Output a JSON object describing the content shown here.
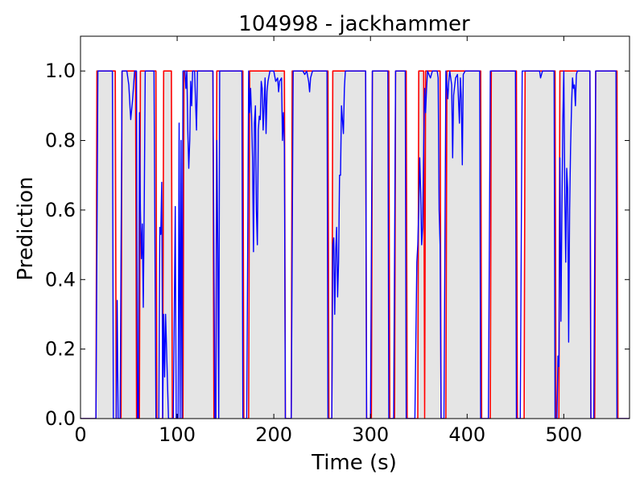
{
  "chart_data": {
    "type": "line",
    "title": "104998 - jackhammer",
    "xlabel": "Time (s)",
    "ylabel": "Prediction",
    "xlim": [
      0,
      568
    ],
    "ylim": [
      0.0,
      1.1
    ],
    "x_ticks": [
      0,
      100,
      200,
      300,
      400,
      500
    ],
    "x_tick_labels": [
      "0",
      "100",
      "200",
      "300",
      "400",
      "500"
    ],
    "y_ticks": [
      0.0,
      0.2,
      0.4,
      0.6,
      0.8,
      1.0
    ],
    "y_tick_labels": [
      "0.0",
      "0.2",
      "0.4",
      "0.6",
      "0.8",
      "1.0"
    ],
    "grid": false,
    "colors": {
      "ground_truth": "#ff0000",
      "prediction": "#0000ff",
      "shading": "#e5e5e5"
    },
    "ground_truth_segments": [
      [
        17,
        36
      ],
      [
        43,
        57
      ],
      [
        62,
        78
      ],
      [
        86,
        94
      ],
      [
        107,
        137
      ],
      [
        141,
        168
      ],
      [
        175,
        211
      ],
      [
        219,
        256
      ],
      [
        261,
        295
      ],
      [
        302,
        319
      ],
      [
        326,
        337
      ],
      [
        350,
        355
      ],
      [
        357,
        372
      ],
      [
        379,
        414
      ],
      [
        425,
        451
      ],
      [
        460,
        491
      ],
      [
        496,
        527
      ],
      [
        533,
        555
      ]
    ],
    "series": [
      {
        "values": [
          [
            0,
            0
          ],
          [
            16,
            0
          ],
          [
            18,
            1
          ],
          [
            33,
            1
          ],
          [
            34,
            0
          ],
          [
            37,
            0
          ],
          [
            38,
            0.34
          ],
          [
            39,
            0
          ],
          [
            41,
            0
          ],
          [
            43,
            1
          ],
          [
            48,
            1
          ],
          [
            50,
            0.96
          ],
          [
            52,
            0.86
          ],
          [
            54,
            0.92
          ],
          [
            56,
            1
          ],
          [
            58,
            1
          ],
          [
            59,
            0
          ],
          [
            60,
            0
          ],
          [
            61,
            0.88
          ],
          [
            62,
            0.6
          ],
          [
            63,
            0.46
          ],
          [
            64,
            0.56
          ],
          [
            65,
            0.32
          ],
          [
            66,
            0.62
          ],
          [
            67,
            1
          ],
          [
            76,
            1
          ],
          [
            78,
            0
          ],
          [
            81,
            0
          ],
          [
            82,
            0.55
          ],
          [
            83,
            0.53
          ],
          [
            84,
            0.68
          ],
          [
            85,
            0
          ],
          [
            86,
            0.3
          ],
          [
            87,
            0.12
          ],
          [
            88,
            0.3
          ],
          [
            89,
            0.2
          ],
          [
            90,
            0.1
          ],
          [
            91,
            0
          ],
          [
            96,
            0
          ],
          [
            98,
            0.61
          ],
          [
            99,
            0
          ],
          [
            101,
            0
          ],
          [
            102,
            0.85
          ],
          [
            103,
            0
          ],
          [
            104,
            0.8
          ],
          [
            105,
            0
          ],
          [
            106,
            1
          ],
          [
            108,
            1
          ],
          [
            109,
            0.95
          ],
          [
            110,
            1
          ],
          [
            111,
            0.83
          ],
          [
            112,
            0.72
          ],
          [
            113,
            0.8
          ],
          [
            114,
            0.97
          ],
          [
            115,
            0.9
          ],
          [
            116,
            1
          ],
          [
            118,
            1
          ],
          [
            120,
            0.83
          ],
          [
            121,
            1
          ],
          [
            137,
            1
          ],
          [
            139,
            0
          ],
          [
            140,
            0
          ],
          [
            141,
            0.8
          ],
          [
            142,
            0.5
          ],
          [
            143,
            0
          ],
          [
            144,
            1
          ],
          [
            167,
            1
          ],
          [
            168,
            0
          ],
          [
            172,
            0
          ],
          [
            174,
            1
          ],
          [
            175,
            0.88
          ],
          [
            176,
            0.95
          ],
          [
            177,
            0.87
          ],
          [
            178,
            0.75
          ],
          [
            179,
            0.48
          ],
          [
            180,
            0.85
          ],
          [
            181,
            0.9
          ],
          [
            182,
            0.6
          ],
          [
            183,
            0.5
          ],
          [
            184,
            0.83
          ],
          [
            185,
            0.87
          ],
          [
            186,
            0.86
          ],
          [
            187,
            0.97
          ],
          [
            188,
            0.95
          ],
          [
            189,
            0.83
          ],
          [
            190,
            0.9
          ],
          [
            191,
            0.98
          ],
          [
            192,
            0.82
          ],
          [
            193,
            0.94
          ],
          [
            194,
            0.97
          ],
          [
            196,
            1
          ],
          [
            200,
            1
          ],
          [
            202,
            0.97
          ],
          [
            204,
            0.98
          ],
          [
            205,
            0.94
          ],
          [
            206,
            0.97
          ],
          [
            208,
            0.98
          ],
          [
            209,
            0.8
          ],
          [
            210,
            0.88
          ],
          [
            211,
            0.78
          ],
          [
            212,
            0
          ],
          [
            218,
            0
          ],
          [
            220,
            1
          ],
          [
            230,
            1
          ],
          [
            232,
            0.99
          ],
          [
            234,
            1
          ],
          [
            236,
            0.97
          ],
          [
            237,
            0.94
          ],
          [
            238,
            0.98
          ],
          [
            240,
            1
          ],
          [
            255,
            1
          ],
          [
            256,
            0
          ],
          [
            260,
            0
          ],
          [
            261,
            0.5
          ],
          [
            262,
            0.52
          ],
          [
            263,
            0.3
          ],
          [
            264,
            0.48
          ],
          [
            265,
            0.55
          ],
          [
            266,
            0.35
          ],
          [
            267,
            0.45
          ],
          [
            268,
            0.7
          ],
          [
            269,
            0.7
          ],
          [
            270,
            0.9
          ],
          [
            272,
            0.82
          ],
          [
            273,
            0.95
          ],
          [
            274,
            1
          ],
          [
            295,
            1
          ],
          [
            296,
            0
          ],
          [
            300,
            0
          ],
          [
            302,
            1
          ],
          [
            318,
            1
          ],
          [
            319,
            0
          ],
          [
            324,
            0
          ],
          [
            326,
            1
          ],
          [
            336,
            1
          ],
          [
            337,
            0
          ],
          [
            346,
            0
          ],
          [
            348,
            0.45
          ],
          [
            349,
            0.5
          ],
          [
            350,
            0.6
          ],
          [
            351,
            0.75
          ],
          [
            352,
            0.65
          ],
          [
            353,
            0.5
          ],
          [
            354,
            0.55
          ],
          [
            355,
            0.78
          ],
          [
            356,
            0.95
          ],
          [
            357,
            0.88
          ],
          [
            358,
            0.95
          ],
          [
            359,
            1
          ],
          [
            362,
            0.98
          ],
          [
            364,
            1
          ],
          [
            369,
            1
          ],
          [
            370,
            0.98
          ],
          [
            371,
            0.6
          ],
          [
            372,
            0.5
          ],
          [
            373,
            0
          ],
          [
            376,
            0
          ],
          [
            378,
            1
          ],
          [
            380,
            0.92
          ],
          [
            381,
            0.97
          ],
          [
            382,
            1
          ],
          [
            384,
            0.96
          ],
          [
            385,
            0.75
          ],
          [
            386,
            0.93
          ],
          [
            388,
            0.98
          ],
          [
            390,
            0.99
          ],
          [
            392,
            0.85
          ],
          [
            393,
            0.98
          ],
          [
            394,
            0.92
          ],
          [
            395,
            0.73
          ],
          [
            396,
            0.99
          ],
          [
            398,
            1
          ],
          [
            413,
            1
          ],
          [
            414,
            0
          ],
          [
            422,
            0
          ],
          [
            424,
            1
          ],
          [
            450,
            1
          ],
          [
            451,
            0
          ],
          [
            455,
            0
          ],
          [
            457,
            1
          ],
          [
            475,
            1
          ],
          [
            476,
            0.98
          ],
          [
            478,
            1
          ],
          [
            490,
            1
          ],
          [
            491,
            0
          ],
          [
            493,
            0
          ],
          [
            494,
            0.18
          ],
          [
            495,
            0.15
          ],
          [
            496,
            0.75
          ],
          [
            497,
            0.28
          ],
          [
            498,
            0.6
          ],
          [
            499,
            0.86
          ],
          [
            500,
            1
          ],
          [
            501,
            0.65
          ],
          [
            502,
            0.45
          ],
          [
            503,
            0.72
          ],
          [
            504,
            0.66
          ],
          [
            505,
            0.22
          ],
          [
            506,
            0.6
          ],
          [
            507,
            0.78
          ],
          [
            508,
            0.9
          ],
          [
            509,
            0.98
          ],
          [
            510,
            0.95
          ],
          [
            511,
            0.96
          ],
          [
            512,
            0.9
          ],
          [
            513,
            0.99
          ],
          [
            514,
            1
          ],
          [
            527,
            1
          ],
          [
            528,
            0
          ],
          [
            531,
            0
          ],
          [
            533,
            1
          ],
          [
            554,
            1
          ],
          [
            555,
            0
          ],
          [
            568,
            0
          ]
        ]
      }
    ]
  }
}
